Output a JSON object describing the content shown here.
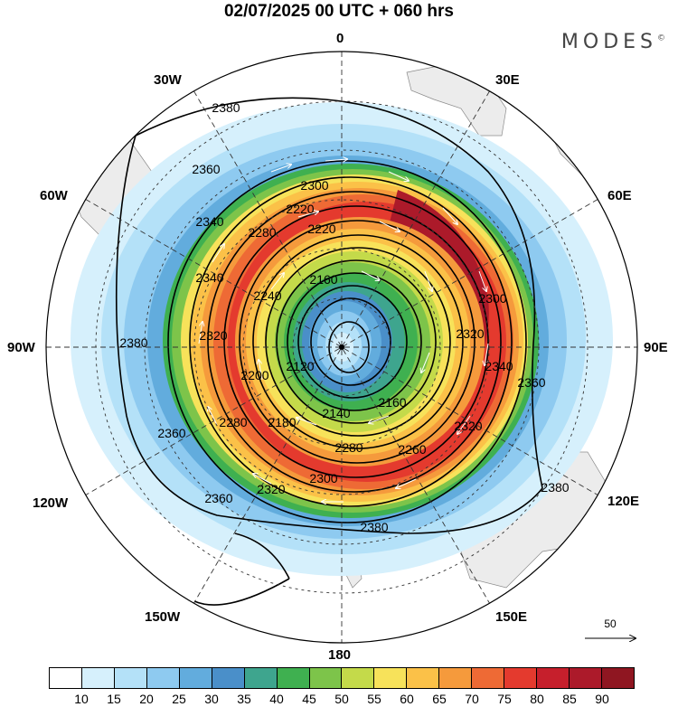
{
  "title": "02/07/2025  00 UTC  + 060 hrs",
  "brand": "MODES",
  "brand_mark": "©",
  "longitude_labels": {
    "top": "0",
    "bottom": "180",
    "left": "90W",
    "right": "90E",
    "upper_left_30": "30W",
    "upper_left_60": "60W",
    "upper_right_30": "30E",
    "upper_right_60": "60E",
    "lower_left_120": "120W",
    "lower_left_150": "150W",
    "lower_right_120": "120E",
    "lower_right_150": "150E"
  },
  "contour_labels": [
    "2380",
    "2360",
    "2340",
    "2340",
    "2300",
    "2280",
    "2240",
    "2220",
    "2160",
    "2120",
    "2140",
    "2160",
    "2180",
    "2200",
    "2280",
    "2320",
    "2300",
    "2280",
    "2260",
    "2320",
    "2340",
    "2360",
    "2380",
    "2380",
    "2360",
    "2360",
    "2320",
    "2320",
    "2300",
    "2220",
    "2380"
  ],
  "vector_reference": "50",
  "colorbar": {
    "colors": [
      "#ffffff",
      "#d6f0fc",
      "#b4e1f8",
      "#8ecaf0",
      "#62acdd",
      "#4a8fc9",
      "#3ea58e",
      "#3fb050",
      "#7dc44a",
      "#c4da4a",
      "#f7e25a",
      "#fbc148",
      "#f59a3c",
      "#ee6a35",
      "#e43a2e",
      "#c61f2c",
      "#ac1a2a",
      "#8f1621"
    ],
    "ticks": [
      "10",
      "15",
      "20",
      "25",
      "30",
      "35",
      "40",
      "45",
      "50",
      "55",
      "60",
      "65",
      "70",
      "75",
      "80",
      "85",
      "90"
    ]
  }
}
